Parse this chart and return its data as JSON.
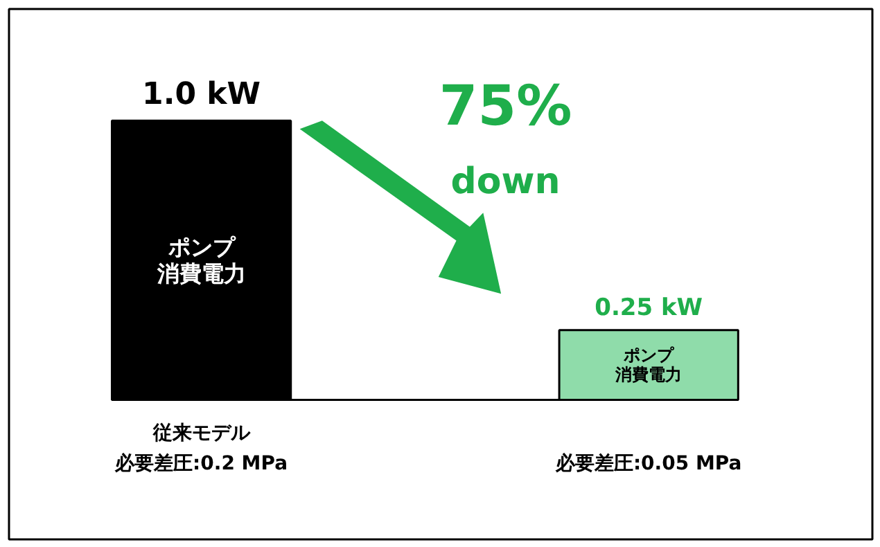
{
  "chart_data": {
    "type": "bar",
    "categories": [
      "従来モデル",
      null
    ],
    "values": [
      1.0,
      0.25
    ],
    "value_labels": [
      "1.0 kW",
      "0.25 kW"
    ],
    "colors": [
      "#000000",
      "#8fdcaa"
    ],
    "annotations": [
      "ポンプ消費電力",
      "ポンプ消費電力",
      "必要差圧:0.2 MPa",
      "必要差圧:0.05 MPa",
      "75%",
      "down"
    ]
  }
}
